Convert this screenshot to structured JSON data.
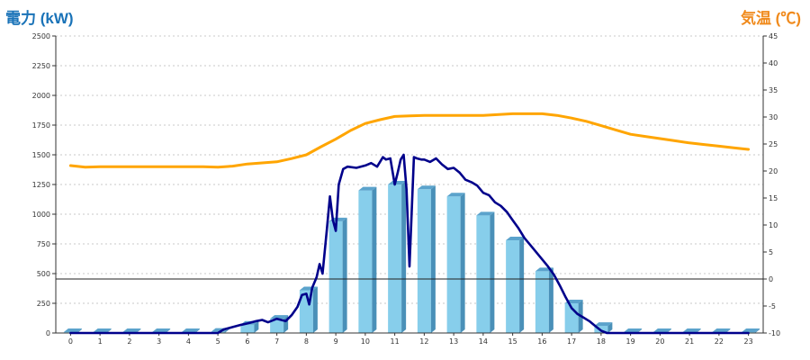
{
  "chart_data": {
    "type": "bar",
    "title": "",
    "y_left_label": "電力 (kW)",
    "y_right_label": "気温 (℃)",
    "categories": [
      "0",
      "1",
      "2",
      "3",
      "4",
      "5",
      "6",
      "7",
      "8",
      "9",
      "10",
      "11",
      "12",
      "13",
      "14",
      "15",
      "16",
      "17",
      "18",
      "19",
      "20",
      "21",
      "22",
      "23"
    ],
    "y_left_ticks": [
      "0",
      "250",
      "500",
      "750",
      "1000",
      "1250",
      "1500",
      "1750",
      "2000",
      "2250",
      "2500"
    ],
    "y_right_ticks": [
      "-10",
      "-5",
      "0",
      "5",
      "10",
      "15",
      "20",
      "25",
      "30",
      "35",
      "40",
      "45"
    ],
    "y_left_range": [
      0,
      2500
    ],
    "y_right_range": [
      -10,
      45
    ],
    "grid": true,
    "colors": {
      "bar": "#87ceeb",
      "bar_top": "#5ba3cc",
      "bar_side": "#4a90b8",
      "power_line": "#00008b",
      "temperature_line": "#ffa500",
      "left_title": "#1a73b8",
      "right_title": "#f08a1c"
    },
    "series": [
      {
        "kind": "bar",
        "axis": "left",
        "values": [
          5,
          5,
          5,
          5,
          5,
          10,
          70,
          120,
          360,
          940,
          1200,
          1250,
          1210,
          1150,
          990,
          780,
          520,
          250,
          60,
          5,
          5,
          5,
          5,
          5
        ]
      },
      {
        "kind": "line",
        "axis": "left",
        "points": [
          [
            0,
            0
          ],
          [
            5,
            0
          ],
          [
            5.2,
            30
          ],
          [
            5.5,
            50
          ],
          [
            5.8,
            70
          ],
          [
            6,
            80
          ],
          [
            6.3,
            100
          ],
          [
            6.5,
            110
          ],
          [
            6.7,
            90
          ],
          [
            7,
            120
          ],
          [
            7.3,
            100
          ],
          [
            7.5,
            150
          ],
          [
            7.7,
            220
          ],
          [
            7.85,
            320
          ],
          [
            8,
            330
          ],
          [
            8.1,
            240
          ],
          [
            8.2,
            380
          ],
          [
            8.35,
            470
          ],
          [
            8.45,
            580
          ],
          [
            8.55,
            500
          ],
          [
            8.7,
            880
          ],
          [
            8.8,
            1150
          ],
          [
            8.9,
            950
          ],
          [
            9,
            860
          ],
          [
            9.1,
            1250
          ],
          [
            9.25,
            1380
          ],
          [
            9.4,
            1400
          ],
          [
            9.7,
            1390
          ],
          [
            10,
            1410
          ],
          [
            10.2,
            1430
          ],
          [
            10.4,
            1400
          ],
          [
            10.6,
            1480
          ],
          [
            10.7,
            1460
          ],
          [
            10.85,
            1470
          ],
          [
            11,
            1250
          ],
          [
            11.1,
            1350
          ],
          [
            11.2,
            1460
          ],
          [
            11.3,
            1500
          ],
          [
            11.4,
            1210
          ],
          [
            11.5,
            560
          ],
          [
            11.65,
            1480
          ],
          [
            11.75,
            1470
          ],
          [
            11.9,
            1460
          ],
          [
            12,
            1460
          ],
          [
            12.2,
            1440
          ],
          [
            12.4,
            1470
          ],
          [
            12.6,
            1420
          ],
          [
            12.8,
            1380
          ],
          [
            13,
            1390
          ],
          [
            13.2,
            1350
          ],
          [
            13.4,
            1290
          ],
          [
            13.6,
            1270
          ],
          [
            13.8,
            1240
          ],
          [
            14,
            1180
          ],
          [
            14.2,
            1160
          ],
          [
            14.4,
            1100
          ],
          [
            14.6,
            1070
          ],
          [
            14.8,
            1020
          ],
          [
            15,
            950
          ],
          [
            15.2,
            880
          ],
          [
            15.4,
            800
          ],
          [
            15.6,
            740
          ],
          [
            15.8,
            680
          ],
          [
            16,
            620
          ],
          [
            16.2,
            560
          ],
          [
            16.4,
            490
          ],
          [
            16.6,
            400
          ],
          [
            16.8,
            300
          ],
          [
            17,
            210
          ],
          [
            17.2,
            160
          ],
          [
            17.4,
            130
          ],
          [
            17.6,
            100
          ],
          [
            17.8,
            60
          ],
          [
            18,
            20
          ],
          [
            18.2,
            0
          ],
          [
            23,
            0
          ]
        ]
      },
      {
        "kind": "line",
        "axis": "right",
        "points": [
          [
            0,
            21
          ],
          [
            0.5,
            20.7
          ],
          [
            1,
            20.8
          ],
          [
            2,
            20.8
          ],
          [
            3,
            20.8
          ],
          [
            4,
            20.8
          ],
          [
            4.5,
            20.8
          ],
          [
            5,
            20.7
          ],
          [
            5.5,
            20.9
          ],
          [
            6,
            21.3
          ],
          [
            6.5,
            21.5
          ],
          [
            7,
            21.7
          ],
          [
            7.5,
            22.3
          ],
          [
            8,
            23
          ],
          [
            8.5,
            24.5
          ],
          [
            9,
            25.9
          ],
          [
            9.5,
            27.5
          ],
          [
            10,
            28.8
          ],
          [
            10.5,
            29.5
          ],
          [
            11,
            30.1
          ],
          [
            11.5,
            30.2
          ],
          [
            12,
            30.3
          ],
          [
            13,
            30.3
          ],
          [
            14,
            30.3
          ],
          [
            15,
            30.6
          ],
          [
            16,
            30.6
          ],
          [
            16.5,
            30.3
          ],
          [
            17,
            29.8
          ],
          [
            17.5,
            29.2
          ],
          [
            18,
            28.4
          ],
          [
            18.5,
            27.6
          ],
          [
            19,
            26.8
          ],
          [
            19.5,
            26.4
          ],
          [
            20,
            26
          ],
          [
            20.5,
            25.6
          ],
          [
            21,
            25.2
          ],
          [
            21.5,
            24.9
          ],
          [
            22,
            24.6
          ],
          [
            22.5,
            24.3
          ],
          [
            23,
            24
          ]
        ]
      }
    ]
  }
}
